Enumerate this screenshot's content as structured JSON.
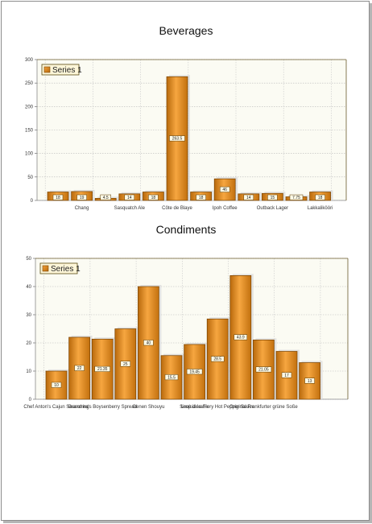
{
  "colors": {
    "bar_light": "#f2a13a",
    "bar_dark": "#a85a06",
    "plot_bg": "#fbfbf3",
    "legend_bg": "#fdf6d8",
    "label_bg": "#fffbe6"
  },
  "chart_data": [
    {
      "type": "bar",
      "title": "Beverages",
      "xlabel": "",
      "ylabel": "",
      "ylim": [
        0,
        300
      ],
      "yticks": [
        0,
        50,
        100,
        150,
        200,
        250,
        300
      ],
      "grid": true,
      "legend": {
        "position": "top-left"
      },
      "categories": [
        "",
        "Chang",
        "",
        "Sasquatch Ale",
        "",
        "Côte de Blaye",
        "",
        "Ipoh Coffee",
        "",
        "Outback Lager",
        "",
        "Lakkalikööri"
      ],
      "series": [
        {
          "name": "Series 1",
          "values": [
            18,
            19,
            4.5,
            14,
            18,
            263.5,
            18,
            46,
            14,
            15,
            7.75,
            18
          ],
          "labels": [
            "18",
            "19",
            "4.5",
            "14",
            "18",
            "263.5",
            "18",
            "46",
            "14",
            "15",
            "7.75",
            "18"
          ]
        }
      ]
    },
    {
      "type": "bar",
      "title": "Condiments",
      "xlabel": "",
      "ylabel": "",
      "ylim": [
        0,
        50
      ],
      "yticks": [
        0,
        10,
        20,
        30,
        40,
        50
      ],
      "grid": true,
      "legend": {
        "position": "top-left"
      },
      "categories": [
        "Chef Anton's Cajun Seasoning",
        "",
        "Grandma's Boysenberry Spread",
        "",
        "Genen Shouyu",
        "",
        "Sirop d'érable",
        "Louisiana Fiery Hot Pepper Sauce",
        "",
        "Original Frankfurter grüne Soße",
        "",
        ""
      ],
      "series": [
        {
          "name": "Series 1",
          "values": [
            10,
            22,
            21.35,
            25,
            40,
            15.5,
            19.45,
            28.5,
            43.9,
            21.05,
            17,
            13
          ],
          "labels": [
            "10",
            "22",
            "21.35",
            "25",
            "40",
            "15.5",
            "19.45",
            "28.5",
            "43.9",
            "21.05",
            "17",
            "13"
          ]
        }
      ]
    }
  ]
}
